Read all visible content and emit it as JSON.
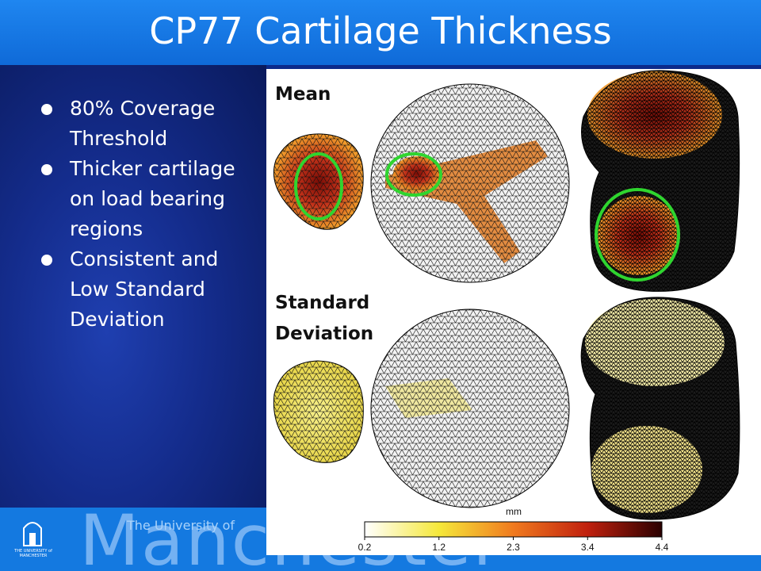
{
  "title": "CP77 Cartilage Thickness",
  "bullets": [
    "80% Coverage Threshold",
    "Thicker cartilage on load bearing regions",
    "Consistent and Low Standard Deviation"
  ],
  "figure": {
    "labels": [
      "Mean",
      "Standard",
      "Deviation"
    ],
    "colorbar": {
      "unit": "mm",
      "ticks": [
        "0.2",
        "1.2",
        "2.3",
        "3.4",
        "4.4"
      ]
    }
  },
  "footer": {
    "logo_text": "THE UNIVERSITY of MANCHESTER",
    "prefix": "The University of",
    "name": "Manchester"
  }
}
